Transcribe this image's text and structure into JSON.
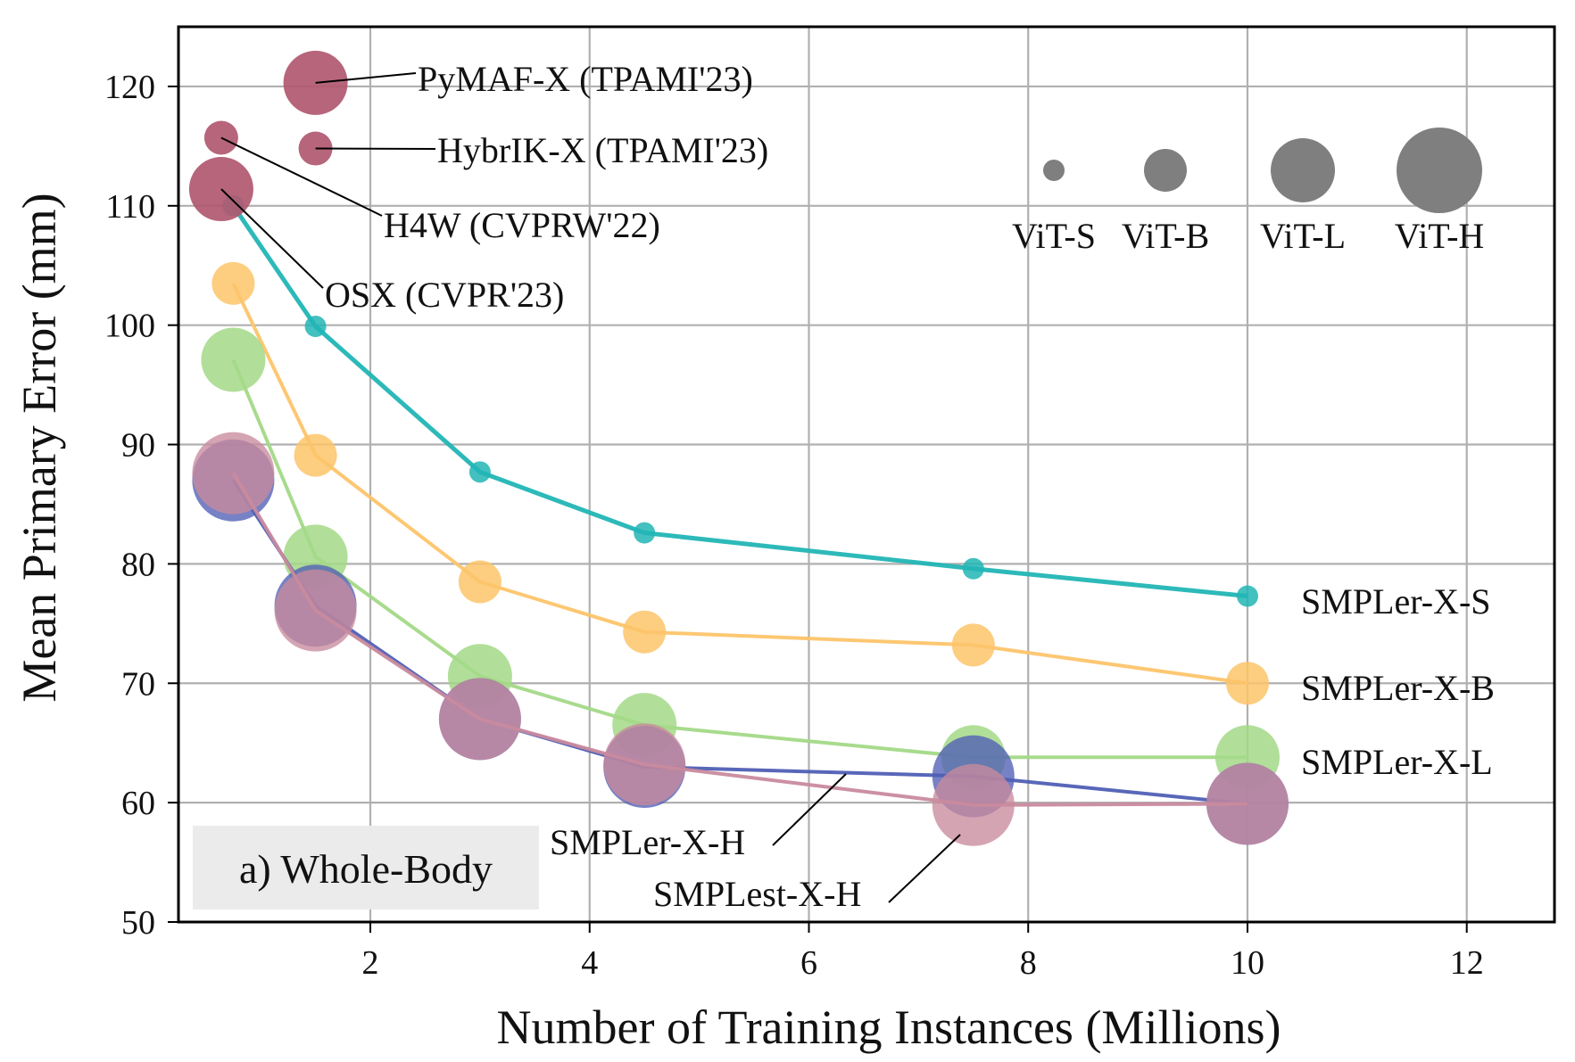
{
  "chart_data": {
    "type": "scatter",
    "title": "",
    "xlabel": "Number of Training Instances (Millions)",
    "ylabel": "Mean Primary Error (mm)",
    "xlim": [
      0.25,
      12.8
    ],
    "ylim": [
      50,
      125
    ],
    "xticks": [
      2,
      4,
      6,
      8,
      10,
      12
    ],
    "yticks": [
      50,
      60,
      70,
      80,
      90,
      100,
      110,
      120
    ],
    "grid": true,
    "panel_label": "a) Whole-Body",
    "size_legend": {
      "position": "top-right",
      "entries": [
        {
          "label": "ViT-S",
          "size": "S"
        },
        {
          "label": "ViT-B",
          "size": "B"
        },
        {
          "label": "ViT-L",
          "size": "L"
        },
        {
          "label": "ViT-H",
          "size": "H"
        }
      ],
      "color": "#7f7f7f"
    },
    "series": [
      {
        "name": "SMPLer-X-S",
        "color": "#22b5b5",
        "size": "S",
        "x": [
          0.75,
          1.5,
          3,
          4.5,
          7.5,
          10
        ],
        "y": [
          110.0,
          99.9,
          87.7,
          82.6,
          79.6,
          77.3
        ],
        "label_position": "right"
      },
      {
        "name": "SMPLer-X-B",
        "color": "#fdc46a",
        "size": "B",
        "x": [
          0.75,
          1.5,
          3,
          4.5,
          7.5,
          10
        ],
        "y": [
          103.5,
          89.1,
          78.5,
          74.3,
          73.2,
          70.0
        ],
        "label_position": "right"
      },
      {
        "name": "SMPLer-X-L",
        "color": "#a3d987",
        "size": "L",
        "x": [
          0.75,
          1.5,
          3,
          4.5,
          7.5,
          10
        ],
        "y": [
          97.1,
          80.6,
          70.6,
          66.5,
          63.8,
          63.8
        ],
        "label_position": "right"
      },
      {
        "name": "SMPLer-X-H",
        "color": "#4f5fb5",
        "size": "H",
        "x": [
          0.75,
          1.5,
          3,
          4.5,
          7.5,
          10
        ],
        "y": [
          87.0,
          76.5,
          67.0,
          63.0,
          62.2,
          59.9
        ],
        "label_position": "annotated"
      },
      {
        "name": "SMPLest-X-H",
        "color": "#c98a9e",
        "size": "H",
        "x": [
          0.75,
          1.5,
          3,
          4.5,
          7.5,
          10
        ],
        "y": [
          87.6,
          76.1,
          67.0,
          63.2,
          59.8,
          59.9
        ],
        "label_position": "annotated"
      }
    ],
    "reference_methods": [
      {
        "name": "PyMAF-X (TPAMI'23)",
        "x": 1.5,
        "y": 120.3,
        "size": "L",
        "color": "#b05870"
      },
      {
        "name": "HybrIK-X (TPAMI'23)",
        "x": 1.5,
        "y": 114.8,
        "size": "S+",
        "color": "#b05870"
      },
      {
        "name": "H4W (CVPRW'22)",
        "x": 0.64,
        "y": 115.7,
        "size": "S+",
        "color": "#b05870"
      },
      {
        "name": "OSX (CVPR'23)",
        "x": 0.64,
        "y": 111.4,
        "size": "L",
        "color": "#b05870"
      }
    ]
  }
}
